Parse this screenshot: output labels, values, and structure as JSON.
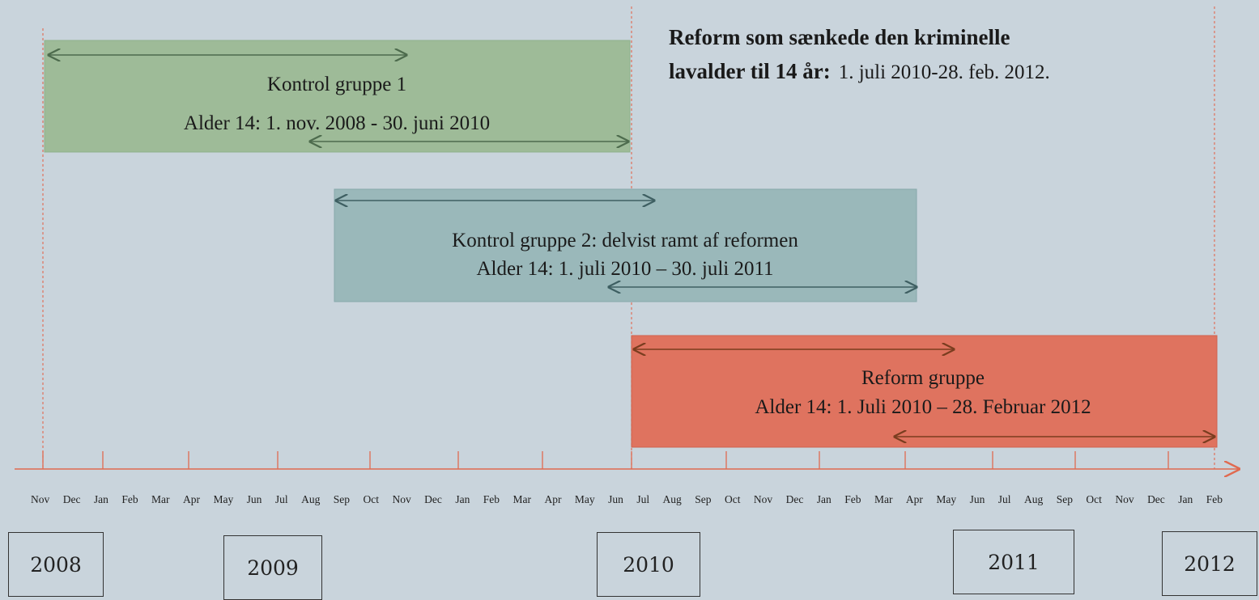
{
  "title": {
    "bold_line1": "Reform som sænkede den kriminelle",
    "bold_line2": "lavalder til 14 år:",
    "period": "1. juli 2010-28. feb. 2012."
  },
  "groups": [
    {
      "name": "Kontrol gruppe 1",
      "period": "Alder 14: 1. nov. 2008 - 30. juni  2010"
    },
    {
      "name": "Kontrol gruppe 2: delvist ramt af reformen",
      "period": "Alder 14: 1. juli 2010 – 30. juli 2011"
    },
    {
      "name": "Reform gruppe",
      "period": "Alder 14: 1. Juli 2010 – 28. Februar 2012"
    }
  ],
  "months": [
    "Nov",
    "Dec",
    "Jan",
    "Feb",
    "Mar",
    "Apr",
    "May",
    "Jun",
    "Jul",
    "Aug",
    "Sep",
    "Oct",
    "Nov",
    "Dec",
    "Jan",
    "Feb",
    "Mar",
    "Apr",
    "May",
    "Jun",
    "Jul",
    "Aug",
    "Sep",
    "Oct",
    "Nov",
    "Dec",
    "Jan",
    "Feb",
    "Mar",
    "Apr",
    "May",
    "Jun",
    "Jul",
    "Aug",
    "Sep",
    "Oct",
    "Nov",
    "Dec",
    "Jan",
    "Feb"
  ],
  "years": [
    "2008",
    "2009",
    "2010",
    "2011",
    "2012"
  ]
}
